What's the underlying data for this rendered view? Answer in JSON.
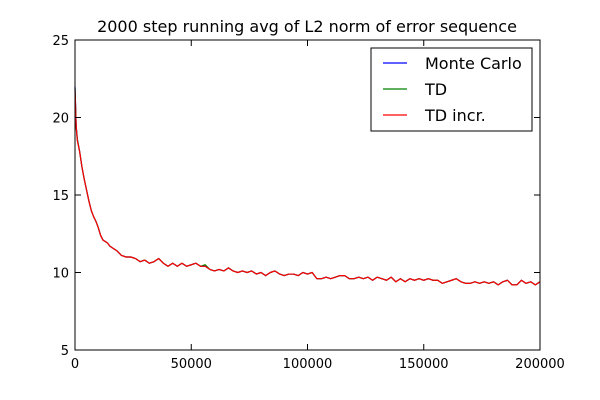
{
  "chart_data": {
    "type": "line",
    "title": "2000 step running avg of L2 norm of error sequence",
    "xlabel": "",
    "ylabel": "",
    "xlim": [
      0,
      200000
    ],
    "ylim": [
      5,
      25
    ],
    "xticks": [
      0,
      50000,
      100000,
      150000,
      200000
    ],
    "xtick_labels": [
      "0",
      "50000",
      "100000",
      "150000",
      "200000"
    ],
    "yticks": [
      5,
      10,
      15,
      20,
      25
    ],
    "ytick_labels": [
      "5",
      "10",
      "15",
      "20",
      "25"
    ],
    "grid": false,
    "legend_position": "top-right",
    "series": [
      {
        "name": "Monte Carlo",
        "color": "#0000ff",
        "x": [
          0,
          500,
          1000,
          2000,
          3000,
          4000,
          5000,
          6000,
          7000,
          8000,
          9000,
          10000,
          11000,
          12000,
          13000,
          14000,
          15000,
          16000,
          18000,
          20000,
          22000,
          24000,
          26000,
          28000,
          30000,
          32000,
          34000,
          36000,
          38000,
          40000,
          42000,
          44000,
          46000,
          48000,
          50000,
          52000,
          54000,
          56000,
          58000,
          60000,
          62000,
          64000,
          66000,
          68000,
          70000,
          72000,
          74000,
          76000,
          78000,
          80000,
          82000,
          84000,
          86000,
          88000,
          90000,
          92000,
          94000,
          96000,
          98000,
          100000,
          102000,
          104000,
          106000,
          108000,
          110000,
          112000,
          114000,
          116000,
          118000,
          120000,
          122000,
          124000,
          126000,
          128000,
          130000,
          132000,
          134000,
          136000,
          138000,
          140000,
          142000,
          144000,
          146000,
          148000,
          150000,
          152000,
          154000,
          156000,
          158000,
          160000,
          162000,
          164000,
          166000,
          168000,
          170000,
          172000,
          174000,
          176000,
          178000,
          180000,
          182000,
          184000,
          186000,
          188000,
          190000,
          192000,
          194000,
          196000,
          198000,
          200000
        ],
        "y": [
          22.0,
          19.5,
          18.6,
          17.8,
          16.8,
          16.0,
          15.3,
          14.6,
          14.0,
          13.6,
          13.3,
          12.9,
          12.4,
          12.1,
          12.0,
          11.9,
          11.7,
          11.6,
          11.4,
          11.1,
          11.0,
          11.0,
          10.9,
          10.7,
          10.8,
          10.6,
          10.7,
          10.9,
          10.6,
          10.4,
          10.6,
          10.4,
          10.6,
          10.4,
          10.5,
          10.6,
          10.4,
          10.4,
          10.2,
          10.1,
          10.2,
          10.1,
          10.3,
          10.1,
          10.0,
          10.1,
          10.0,
          10.1,
          9.9,
          10.0,
          9.8,
          10.0,
          10.1,
          9.9,
          9.8,
          9.9,
          9.9,
          9.8,
          10.0,
          9.9,
          10.0,
          9.6,
          9.6,
          9.7,
          9.6,
          9.7,
          9.8,
          9.8,
          9.6,
          9.6,
          9.7,
          9.6,
          9.7,
          9.5,
          9.7,
          9.6,
          9.5,
          9.7,
          9.4,
          9.6,
          9.4,
          9.6,
          9.5,
          9.6,
          9.5,
          9.6,
          9.5,
          9.5,
          9.3,
          9.4,
          9.5,
          9.6,
          9.4,
          9.3,
          9.3,
          9.4,
          9.3,
          9.4,
          9.3,
          9.4,
          9.2,
          9.4,
          9.5,
          9.2,
          9.2,
          9.5,
          9.3,
          9.4,
          9.2,
          9.4
        ]
      },
      {
        "name": "TD",
        "color": "#008000",
        "x": [
          0,
          500,
          1000,
          2000,
          3000,
          4000,
          5000,
          6000,
          7000,
          8000,
          9000,
          10000,
          11000,
          12000,
          13000,
          14000,
          15000,
          16000,
          18000,
          20000,
          22000,
          24000,
          26000,
          28000,
          30000,
          32000,
          34000,
          36000,
          38000,
          40000,
          42000,
          44000,
          46000,
          48000,
          50000,
          52000,
          54000,
          56000,
          58000,
          60000,
          62000,
          64000,
          66000,
          68000,
          70000,
          72000,
          74000,
          76000,
          78000,
          80000,
          82000,
          84000,
          86000,
          88000,
          90000,
          92000,
          94000,
          96000,
          98000,
          100000,
          102000,
          104000,
          106000,
          108000,
          110000,
          112000,
          114000,
          116000,
          118000,
          120000,
          122000,
          124000,
          126000,
          128000,
          130000,
          132000,
          134000,
          136000,
          138000,
          140000,
          142000,
          144000,
          146000,
          148000,
          150000,
          152000,
          154000,
          156000,
          158000,
          160000,
          162000,
          164000,
          166000,
          168000,
          170000,
          172000,
          174000,
          176000,
          178000,
          180000,
          182000,
          184000,
          186000,
          188000,
          190000,
          192000,
          194000,
          196000,
          198000,
          200000
        ],
        "y": [
          21.9,
          19.4,
          18.6,
          17.8,
          16.8,
          16.0,
          15.3,
          14.6,
          14.0,
          13.6,
          13.3,
          12.9,
          12.4,
          12.1,
          12.0,
          11.9,
          11.7,
          11.6,
          11.4,
          11.1,
          11.0,
          11.0,
          10.9,
          10.7,
          10.8,
          10.6,
          10.7,
          10.9,
          10.6,
          10.4,
          10.6,
          10.4,
          10.6,
          10.4,
          10.5,
          10.6,
          10.4,
          10.5,
          10.2,
          10.1,
          10.2,
          10.1,
          10.3,
          10.1,
          10.0,
          10.1,
          10.0,
          10.1,
          9.9,
          10.0,
          9.8,
          10.0,
          10.1,
          9.9,
          9.8,
          9.9,
          9.9,
          9.8,
          10.0,
          9.9,
          10.0,
          9.6,
          9.6,
          9.7,
          9.6,
          9.7,
          9.8,
          9.8,
          9.6,
          9.6,
          9.7,
          9.6,
          9.7,
          9.5,
          9.7,
          9.6,
          9.5,
          9.7,
          9.4,
          9.6,
          9.4,
          9.6,
          9.5,
          9.6,
          9.5,
          9.6,
          9.5,
          9.5,
          9.3,
          9.4,
          9.5,
          9.6,
          9.4,
          9.3,
          9.3,
          9.4,
          9.3,
          9.4,
          9.3,
          9.4,
          9.2,
          9.4,
          9.5,
          9.2,
          9.2,
          9.5,
          9.3,
          9.4,
          9.2,
          9.4
        ]
      },
      {
        "name": "TD incr.",
        "color": "#ff0000",
        "x": [
          0,
          500,
          1000,
          2000,
          3000,
          4000,
          5000,
          6000,
          7000,
          8000,
          9000,
          10000,
          11000,
          12000,
          13000,
          14000,
          15000,
          16000,
          18000,
          20000,
          22000,
          24000,
          26000,
          28000,
          30000,
          32000,
          34000,
          36000,
          38000,
          40000,
          42000,
          44000,
          46000,
          48000,
          50000,
          52000,
          54000,
          56000,
          58000,
          60000,
          62000,
          64000,
          66000,
          68000,
          70000,
          72000,
          74000,
          76000,
          78000,
          80000,
          82000,
          84000,
          86000,
          88000,
          90000,
          92000,
          94000,
          96000,
          98000,
          100000,
          102000,
          104000,
          106000,
          108000,
          110000,
          112000,
          114000,
          116000,
          118000,
          120000,
          122000,
          124000,
          126000,
          128000,
          130000,
          132000,
          134000,
          136000,
          138000,
          140000,
          142000,
          144000,
          146000,
          148000,
          150000,
          152000,
          154000,
          156000,
          158000,
          160000,
          162000,
          164000,
          166000,
          168000,
          170000,
          172000,
          174000,
          176000,
          178000,
          180000,
          182000,
          184000,
          186000,
          188000,
          190000,
          192000,
          194000,
          196000,
          198000,
          200000
        ],
        "y": [
          21.8,
          19.4,
          18.5,
          17.8,
          16.8,
          16.0,
          15.3,
          14.6,
          14.0,
          13.6,
          13.3,
          12.9,
          12.4,
          12.1,
          12.0,
          11.9,
          11.7,
          11.6,
          11.4,
          11.1,
          11.0,
          11.0,
          10.9,
          10.7,
          10.8,
          10.6,
          10.7,
          10.9,
          10.6,
          10.4,
          10.6,
          10.4,
          10.6,
          10.4,
          10.5,
          10.6,
          10.4,
          10.4,
          10.2,
          10.1,
          10.2,
          10.1,
          10.3,
          10.1,
          10.0,
          10.1,
          10.0,
          10.1,
          9.9,
          10.0,
          9.8,
          10.0,
          10.1,
          9.9,
          9.8,
          9.9,
          9.9,
          9.8,
          10.0,
          9.9,
          10.0,
          9.6,
          9.6,
          9.7,
          9.6,
          9.7,
          9.8,
          9.8,
          9.6,
          9.6,
          9.7,
          9.6,
          9.7,
          9.5,
          9.7,
          9.6,
          9.5,
          9.7,
          9.4,
          9.6,
          9.4,
          9.6,
          9.5,
          9.6,
          9.5,
          9.6,
          9.5,
          9.5,
          9.3,
          9.4,
          9.5,
          9.6,
          9.4,
          9.3,
          9.3,
          9.4,
          9.3,
          9.4,
          9.3,
          9.4,
          9.2,
          9.4,
          9.5,
          9.2,
          9.2,
          9.5,
          9.3,
          9.4,
          9.2,
          9.4
        ]
      }
    ]
  }
}
